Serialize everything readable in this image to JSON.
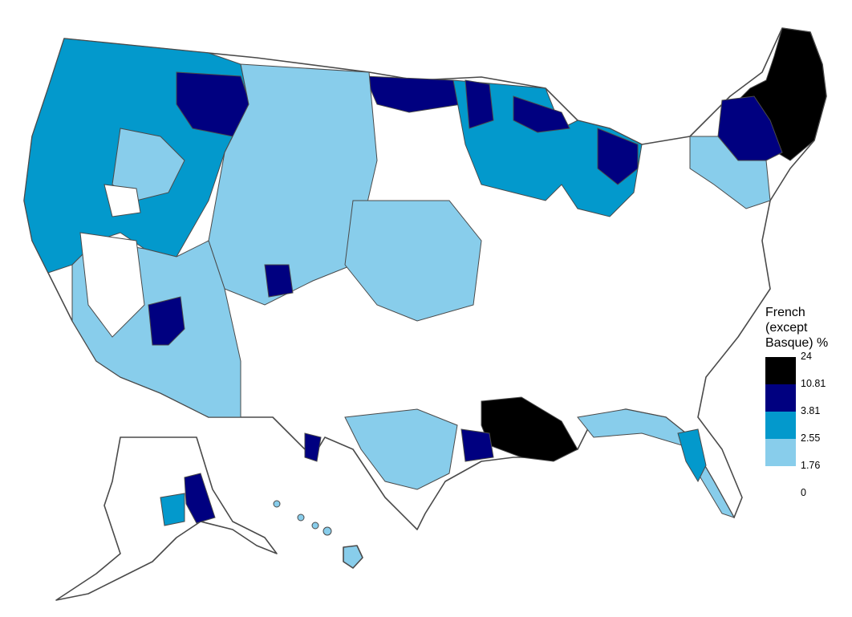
{
  "legend": {
    "title_lines": [
      "French",
      "(except",
      "Basque) %"
    ],
    "breaks": [
      "24",
      "10.81",
      "3.81",
      "2.55",
      "1.76",
      "0"
    ],
    "classes": [
      {
        "range": "10.81–24",
        "color": "#000000"
      },
      {
        "range": "3.81–10.81",
        "color": "#000080"
      },
      {
        "range": "2.55–3.81",
        "color": "#0399cc"
      },
      {
        "range": "1.76–2.55",
        "color": "#88cdeb"
      },
      {
        "range": "0–1.76",
        "color": "#ffffff"
      }
    ]
  },
  "regions": [
    {
      "name": "northwest",
      "class": "2.55–3.81"
    },
    {
      "name": "montana-north-dakota",
      "class": "3.81–10.81"
    },
    {
      "name": "great-lakes-upper-midwest",
      "class": "3.81–10.81"
    },
    {
      "name": "new-england",
      "class": "10.81–24"
    },
    {
      "name": "louisiana",
      "class": "10.81–24"
    },
    {
      "name": "southwest",
      "class": "1.76–2.55"
    },
    {
      "name": "south-and-east",
      "class": "0–1.76"
    },
    {
      "name": "alaska",
      "class": "1.76–2.55"
    },
    {
      "name": "hawaii",
      "class": "1.76–2.55"
    }
  ]
}
